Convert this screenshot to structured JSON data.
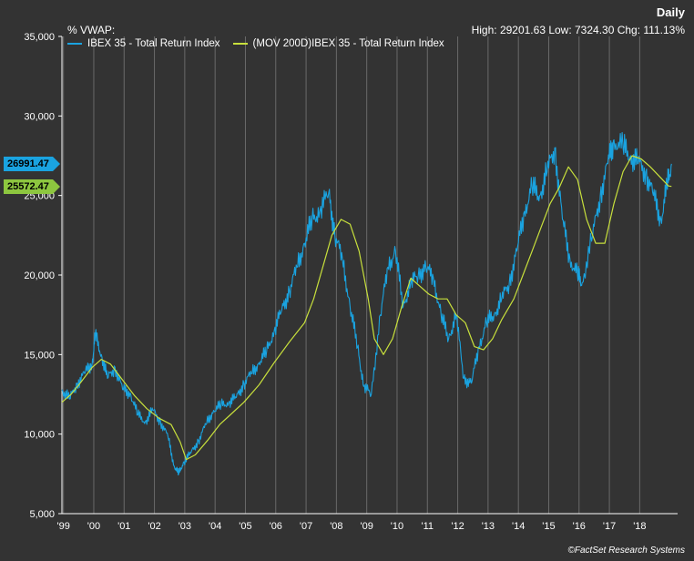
{
  "header": {
    "left_label": "%  VWAP:",
    "title": "Daily",
    "stats": "High: 29201.63 Low: 7324.30 Chg: 111.13%"
  },
  "legend": [
    {
      "label": "IBEX 35 - Total Return Index",
      "color": "#1aa3e0"
    },
    {
      "label": "(MOV 200D)IBEX 35 - Total Return Index",
      "color": "#c8e03c"
    }
  ],
  "tags": {
    "last_price": {
      "text": "26991.47",
      "color": "#1aa3e0",
      "value": 26991.47
    },
    "last_ma": {
      "text": "25572.47",
      "color": "#8dc63f",
      "value": 25572.47
    }
  },
  "credit": "©FactSet Research Systems",
  "chart_data": {
    "type": "line",
    "x_tick_labels": [
      "'99",
      "'00",
      "'01",
      "'02",
      "'03",
      "'04",
      "'05",
      "'06",
      "'07",
      "'08",
      "'09",
      "'10",
      "'11",
      "'12",
      "'13",
      "'14",
      "'15",
      "'16",
      "'17",
      "'18"
    ],
    "y_ticks": [
      5000,
      10000,
      15000,
      20000,
      25000,
      30000,
      35000
    ],
    "y_tick_labels": [
      "5,000",
      "10,000",
      "15,000",
      "20,000",
      "25,000",
      "30,000",
      "35,000"
    ],
    "ylim": [
      5000,
      35000
    ],
    "xlim": [
      1999.0,
      2019.3
    ],
    "grid": "vertical",
    "legend_position": "top-left",
    "series": [
      {
        "name": "IBEX 35 - Total Return Index",
        "color": "#1aa3e0",
        "x": [
          1999.0,
          1999.25,
          1999.5,
          1999.75,
          2000.0,
          2000.1,
          2000.3,
          2000.5,
          2000.75,
          2001.0,
          2001.25,
          2001.5,
          2001.75,
          2002.0,
          2002.25,
          2002.5,
          2002.7,
          2002.85,
          2003.0,
          2003.25,
          2003.5,
          2003.75,
          2004.0,
          2004.25,
          2004.5,
          2004.75,
          2005.0,
          2005.25,
          2005.5,
          2005.75,
          2006.0,
          2006.25,
          2006.5,
          2006.75,
          2007.0,
          2007.25,
          2007.5,
          2007.8,
          2008.0,
          2008.25,
          2008.5,
          2008.75,
          2008.95,
          2009.2,
          2009.5,
          2009.75,
          2010.0,
          2010.25,
          2010.5,
          2010.75,
          2011.0,
          2011.25,
          2011.5,
          2011.75,
          2012.0,
          2012.25,
          2012.5,
          2012.75,
          2013.0,
          2013.25,
          2013.5,
          2013.75,
          2014.0,
          2014.25,
          2014.5,
          2014.75,
          2015.0,
          2015.25,
          2015.5,
          2015.75,
          2016.0,
          2016.15,
          2016.5,
          2016.75,
          2017.0,
          2017.2,
          2017.5,
          2017.75,
          2018.0,
          2018.25,
          2018.5,
          2018.75,
          2018.95,
          2019.1
        ],
        "y": [
          12800,
          12200,
          13200,
          13800,
          14500,
          16200,
          15000,
          13500,
          14200,
          12800,
          12600,
          11200,
          10800,
          11500,
          10800,
          9800,
          8000,
          7500,
          8200,
          8800,
          9600,
          10600,
          11500,
          11800,
          12000,
          12300,
          13200,
          13800,
          14500,
          15200,
          16500,
          17800,
          19000,
          20500,
          22000,
          23500,
          24000,
          25200,
          22500,
          21000,
          18000,
          15500,
          13000,
          12500,
          17500,
          20500,
          21500,
          18000,
          19500,
          20000,
          20500,
          19800,
          17500,
          16000,
          17500,
          13500,
          13200,
          15500,
          17000,
          17500,
          18500,
          19500,
          21500,
          24000,
          25500,
          25000,
          26500,
          28000,
          23500,
          21000,
          20000,
          19500,
          22500,
          25000,
          27000,
          28500,
          28000,
          27500,
          27000,
          26500,
          25000,
          23500,
          25500,
          26991.47
        ]
      },
      {
        "name": "(MOV 200D)IBEX 35 - Total Return Index",
        "color": "#c8e03c",
        "x": [
          1999.0,
          1999.3,
          1999.6,
          2000.0,
          2000.3,
          2000.6,
          2001.0,
          2001.4,
          2001.8,
          2002.2,
          2002.6,
          2002.9,
          2003.1,
          2003.4,
          2003.8,
          2004.2,
          2004.6,
          2005.0,
          2005.5,
          2006.0,
          2006.5,
          2007.0,
          2007.3,
          2007.6,
          2007.9,
          2008.2,
          2008.5,
          2008.8,
          2009.1,
          2009.3,
          2009.6,
          2009.9,
          2010.2,
          2010.5,
          2010.8,
          2011.1,
          2011.4,
          2011.7,
          2012.0,
          2012.3,
          2012.6,
          2012.9,
          2013.2,
          2013.5,
          2013.9,
          2014.2,
          2014.5,
          2014.8,
          2015.1,
          2015.4,
          2015.7,
          2016.0,
          2016.3,
          2016.6,
          2016.9,
          2017.2,
          2017.5,
          2017.8,
          2018.1,
          2018.4,
          2018.7,
          2019.0,
          2019.1
        ],
        "y": [
          12000,
          12500,
          13200,
          14200,
          14700,
          14400,
          13400,
          12400,
          11600,
          11000,
          10600,
          9500,
          8400,
          8700,
          9600,
          10600,
          11300,
          12000,
          13100,
          14500,
          15800,
          17000,
          18500,
          20500,
          22500,
          23500,
          23200,
          21500,
          18500,
          16000,
          15000,
          16000,
          18000,
          19800,
          19300,
          18800,
          18500,
          18500,
          17500,
          17000,
          15500,
          15300,
          16000,
          17200,
          18500,
          20000,
          21500,
          23000,
          24500,
          25500,
          26800,
          26000,
          23500,
          22000,
          22000,
          24500,
          26500,
          27500,
          27300,
          26800,
          26200,
          25600,
          25572.47
        ]
      }
    ]
  }
}
